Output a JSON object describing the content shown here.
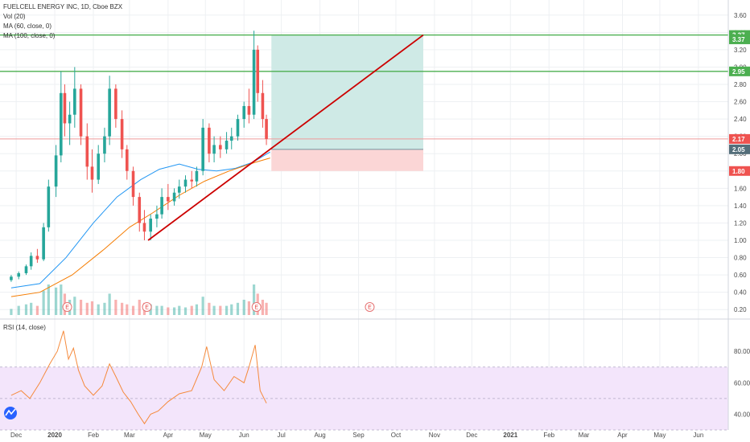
{
  "header": {
    "symbol_line": "FUELCELL ENERGY INC, 1D, Cboe BZX",
    "indicators": [
      "Vol (20)",
      "MA (60, close, 0)",
      "MA (100, close, 0)"
    ],
    "rsi_label": "RSI (14, close)"
  },
  "colors": {
    "up": "#26a69a",
    "down": "#ef5350",
    "ma60": "#2196f3",
    "ma100": "#f57c00",
    "rsi": "#f58a3c",
    "target": "#4caf50",
    "trend": "#cc0000",
    "profit_zone": "#cfeae6",
    "loss_zone": "#fbd6d6",
    "rsi_band": "#f3e5fb"
  },
  "chart_data": [
    {
      "type": "candlestick",
      "yaxis": {
        "ylim": [
          0.1,
          3.7
        ],
        "ticks": [
          "3.60",
          "3.40",
          "3.20",
          "3.00",
          "2.80",
          "2.60",
          "2.40",
          "2.20",
          "2.00",
          "1.80",
          "1.60",
          "1.40",
          "1.20",
          "1.00",
          "0.80",
          "0.60",
          "0.40",
          "0.20"
        ]
      },
      "xaxis": {
        "ticks": [
          "Dec",
          "2020",
          "Feb",
          "Mar",
          "Apr",
          "May",
          "Jun",
          "Jul",
          "Aug",
          "Sep",
          "Oct",
          "Nov",
          "Dec",
          "2021",
          "Feb",
          "Mar",
          "Apr",
          "May",
          "Jun"
        ]
      },
      "price_tags": [
        {
          "label": "3.37",
          "value": 3.37,
          "color": "#4caf50"
        },
        {
          "label": "3.37",
          "value": 3.32,
          "color": "#4caf50"
        },
        {
          "label": "2.95",
          "value": 2.95,
          "color": "#4caf50"
        },
        {
          "label": "2.17",
          "value": 2.17,
          "color": "#ef5350"
        },
        {
          "label": "2.05",
          "value": 2.05,
          "color": "#546e7a"
        },
        {
          "label": "1.80",
          "value": 1.8,
          "color": "#ef5350"
        }
      ],
      "horizontal_lines": [
        {
          "value": 3.37,
          "color": "#4caf50"
        },
        {
          "value": 2.95,
          "color": "#4caf50"
        },
        {
          "value": 2.17,
          "color": "#ef9a9a"
        }
      ],
      "trend_line": {
        "from": [
          "2020-03-16",
          1.0
        ],
        "to": [
          "2020-10-23",
          3.37
        ]
      },
      "position": {
        "start": "2020-06-23",
        "end": "2020-10-23",
        "entry": 2.05,
        "target": 3.37,
        "stop": 1.8
      },
      "earnings": [
        "2020-01-11",
        "2020-03-15",
        "2020-06-11",
        "2020-09-10"
      ],
      "ohlc": [
        [
          "2019-11-27",
          0.54,
          0.6,
          0.52,
          0.58
        ],
        [
          "2019-12-03",
          0.58,
          0.64,
          0.55,
          0.62
        ],
        [
          "2019-12-09",
          0.62,
          0.72,
          0.6,
          0.7
        ],
        [
          "2019-12-13",
          0.7,
          0.86,
          0.66,
          0.82
        ],
        [
          "2019-12-18",
          0.82,
          0.9,
          0.74,
          0.78
        ],
        [
          "2019-12-23",
          0.78,
          1.2,
          0.76,
          1.15
        ],
        [
          "2019-12-27",
          1.15,
          1.7,
          1.1,
          1.62
        ],
        [
          "2020-01-02",
          1.62,
          2.1,
          1.5,
          1.98
        ],
        [
          "2020-01-06",
          1.98,
          2.95,
          1.9,
          2.7
        ],
        [
          "2020-01-09",
          2.7,
          2.8,
          2.2,
          2.35
        ],
        [
          "2020-01-13",
          2.35,
          2.6,
          2.1,
          2.45
        ],
        [
          "2020-01-17",
          2.45,
          3.0,
          2.3,
          2.75
        ],
        [
          "2020-01-22",
          2.75,
          2.8,
          2.1,
          2.2
        ],
        [
          "2020-01-27",
          2.2,
          2.35,
          1.7,
          1.85
        ],
        [
          "2020-01-31",
          1.85,
          2.05,
          1.55,
          1.7
        ],
        [
          "2020-02-05",
          1.7,
          2.1,
          1.65,
          2.0
        ],
        [
          "2020-02-10",
          2.0,
          2.3,
          1.9,
          2.2
        ],
        [
          "2020-02-14",
          2.2,
          2.9,
          2.1,
          2.75
        ],
        [
          "2020-02-19",
          2.75,
          2.8,
          2.3,
          2.4
        ],
        [
          "2020-02-24",
          2.4,
          2.5,
          1.95,
          2.05
        ],
        [
          "2020-02-28",
          2.05,
          2.1,
          1.7,
          1.8
        ],
        [
          "2020-03-04",
          1.8,
          1.85,
          1.4,
          1.5
        ],
        [
          "2020-03-09",
          1.5,
          1.55,
          1.1,
          1.2
        ],
        [
          "2020-03-13",
          1.2,
          1.35,
          1.0,
          1.1
        ],
        [
          "2020-03-18",
          1.1,
          1.3,
          1.0,
          1.25
        ],
        [
          "2020-03-23",
          1.25,
          1.4,
          1.15,
          1.3
        ],
        [
          "2020-03-27",
          1.3,
          1.6,
          1.25,
          1.5
        ],
        [
          "2020-04-01",
          1.5,
          1.65,
          1.35,
          1.45
        ],
        [
          "2020-04-06",
          1.45,
          1.6,
          1.4,
          1.55
        ],
        [
          "2020-04-10",
          1.55,
          1.7,
          1.48,
          1.62
        ],
        [
          "2020-04-15",
          1.62,
          1.75,
          1.55,
          1.7
        ],
        [
          "2020-04-20",
          1.7,
          1.8,
          1.6,
          1.68
        ],
        [
          "2020-04-24",
          1.68,
          1.85,
          1.62,
          1.8
        ],
        [
          "2020-04-29",
          1.8,
          2.4,
          1.75,
          2.3
        ],
        [
          "2020-05-04",
          2.3,
          2.35,
          1.9,
          2.0
        ],
        [
          "2020-05-08",
          2.0,
          2.2,
          1.9,
          2.1
        ],
        [
          "2020-05-13",
          2.1,
          2.2,
          1.95,
          2.05
        ],
        [
          "2020-05-18",
          2.05,
          2.25,
          2.0,
          2.15
        ],
        [
          "2020-05-22",
          2.15,
          2.3,
          2.05,
          2.2
        ],
        [
          "2020-05-27",
          2.2,
          2.45,
          2.15,
          2.4
        ],
        [
          "2020-06-01",
          2.4,
          2.6,
          2.3,
          2.55
        ],
        [
          "2020-06-05",
          2.55,
          2.75,
          2.35,
          2.45
        ],
        [
          "2020-06-09",
          2.45,
          3.42,
          2.4,
          3.2
        ],
        [
          "2020-06-12",
          3.2,
          3.25,
          2.6,
          2.7
        ],
        [
          "2020-06-16",
          2.7,
          2.85,
          2.3,
          2.4
        ],
        [
          "2020-06-19",
          2.4,
          2.45,
          2.1,
          2.17
        ]
      ],
      "ma60": [
        [
          "2019-11-27",
          0.45
        ],
        [
          "2019-12-20",
          0.5
        ],
        [
          "2020-01-10",
          0.8
        ],
        [
          "2020-02-01",
          1.2
        ],
        [
          "2020-02-20",
          1.5
        ],
        [
          "2020-03-10",
          1.7
        ],
        [
          "2020-03-25",
          1.82
        ],
        [
          "2020-04-10",
          1.88
        ],
        [
          "2020-04-25",
          1.82
        ],
        [
          "2020-05-10",
          1.8
        ],
        [
          "2020-05-25",
          1.83
        ],
        [
          "2020-06-08",
          1.9
        ],
        [
          "2020-06-22",
          2.02
        ]
      ],
      "ma100": [
        [
          "2019-11-27",
          0.35
        ],
        [
          "2019-12-20",
          0.4
        ],
        [
          "2020-01-15",
          0.6
        ],
        [
          "2020-02-10",
          0.9
        ],
        [
          "2020-03-01",
          1.15
        ],
        [
          "2020-03-20",
          1.32
        ],
        [
          "2020-04-10",
          1.52
        ],
        [
          "2020-04-30",
          1.68
        ],
        [
          "2020-05-20",
          1.8
        ],
        [
          "2020-06-10",
          1.9
        ],
        [
          "2020-06-22",
          1.95
        ]
      ],
      "volume": [
        0.2,
        0.3,
        0.35,
        0.4,
        0.3,
        0.8,
        1.0,
        0.9,
        1.0,
        0.7,
        0.5,
        0.6,
        0.5,
        0.4,
        0.45,
        0.35,
        0.4,
        0.7,
        0.5,
        0.4,
        0.35,
        0.3,
        0.5,
        0.4,
        0.35,
        0.3,
        0.3,
        0.25,
        0.25,
        0.3,
        0.25,
        0.3,
        0.35,
        0.6,
        0.4,
        0.3,
        0.3,
        0.3,
        0.35,
        0.4,
        0.5,
        0.45,
        1.0,
        0.7,
        0.5,
        0.4
      ]
    },
    {
      "type": "line",
      "name": "RSI (14, close)",
      "yaxis": {
        "ylim": [
          30,
          100
        ],
        "ticks": [
          "80.00",
          "60.00",
          "40.00"
        ],
        "band": [
          30,
          70
        ]
      },
      "x": [
        "2019-11-27",
        "2019-12-05",
        "2019-12-12",
        "2019-12-20",
        "2019-12-28",
        "2020-01-03",
        "2020-01-08",
        "2020-01-12",
        "2020-01-16",
        "2020-01-20",
        "2020-01-25",
        "2020-02-01",
        "2020-02-08",
        "2020-02-14",
        "2020-02-19",
        "2020-02-25",
        "2020-03-02",
        "2020-03-08",
        "2020-03-13",
        "2020-03-18",
        "2020-03-24",
        "2020-04-01",
        "2020-04-10",
        "2020-04-20",
        "2020-04-28",
        "2020-05-02",
        "2020-05-08",
        "2020-05-16",
        "2020-05-24",
        "2020-06-01",
        "2020-06-05",
        "2020-06-10",
        "2020-06-14",
        "2020-06-19"
      ],
      "values": [
        52,
        55,
        50,
        60,
        72,
        80,
        93,
        75,
        82,
        68,
        58,
        52,
        58,
        72,
        64,
        54,
        48,
        40,
        34,
        40,
        42,
        48,
        53,
        55,
        70,
        83,
        62,
        55,
        64,
        60,
        70,
        84,
        55,
        47
      ]
    }
  ]
}
